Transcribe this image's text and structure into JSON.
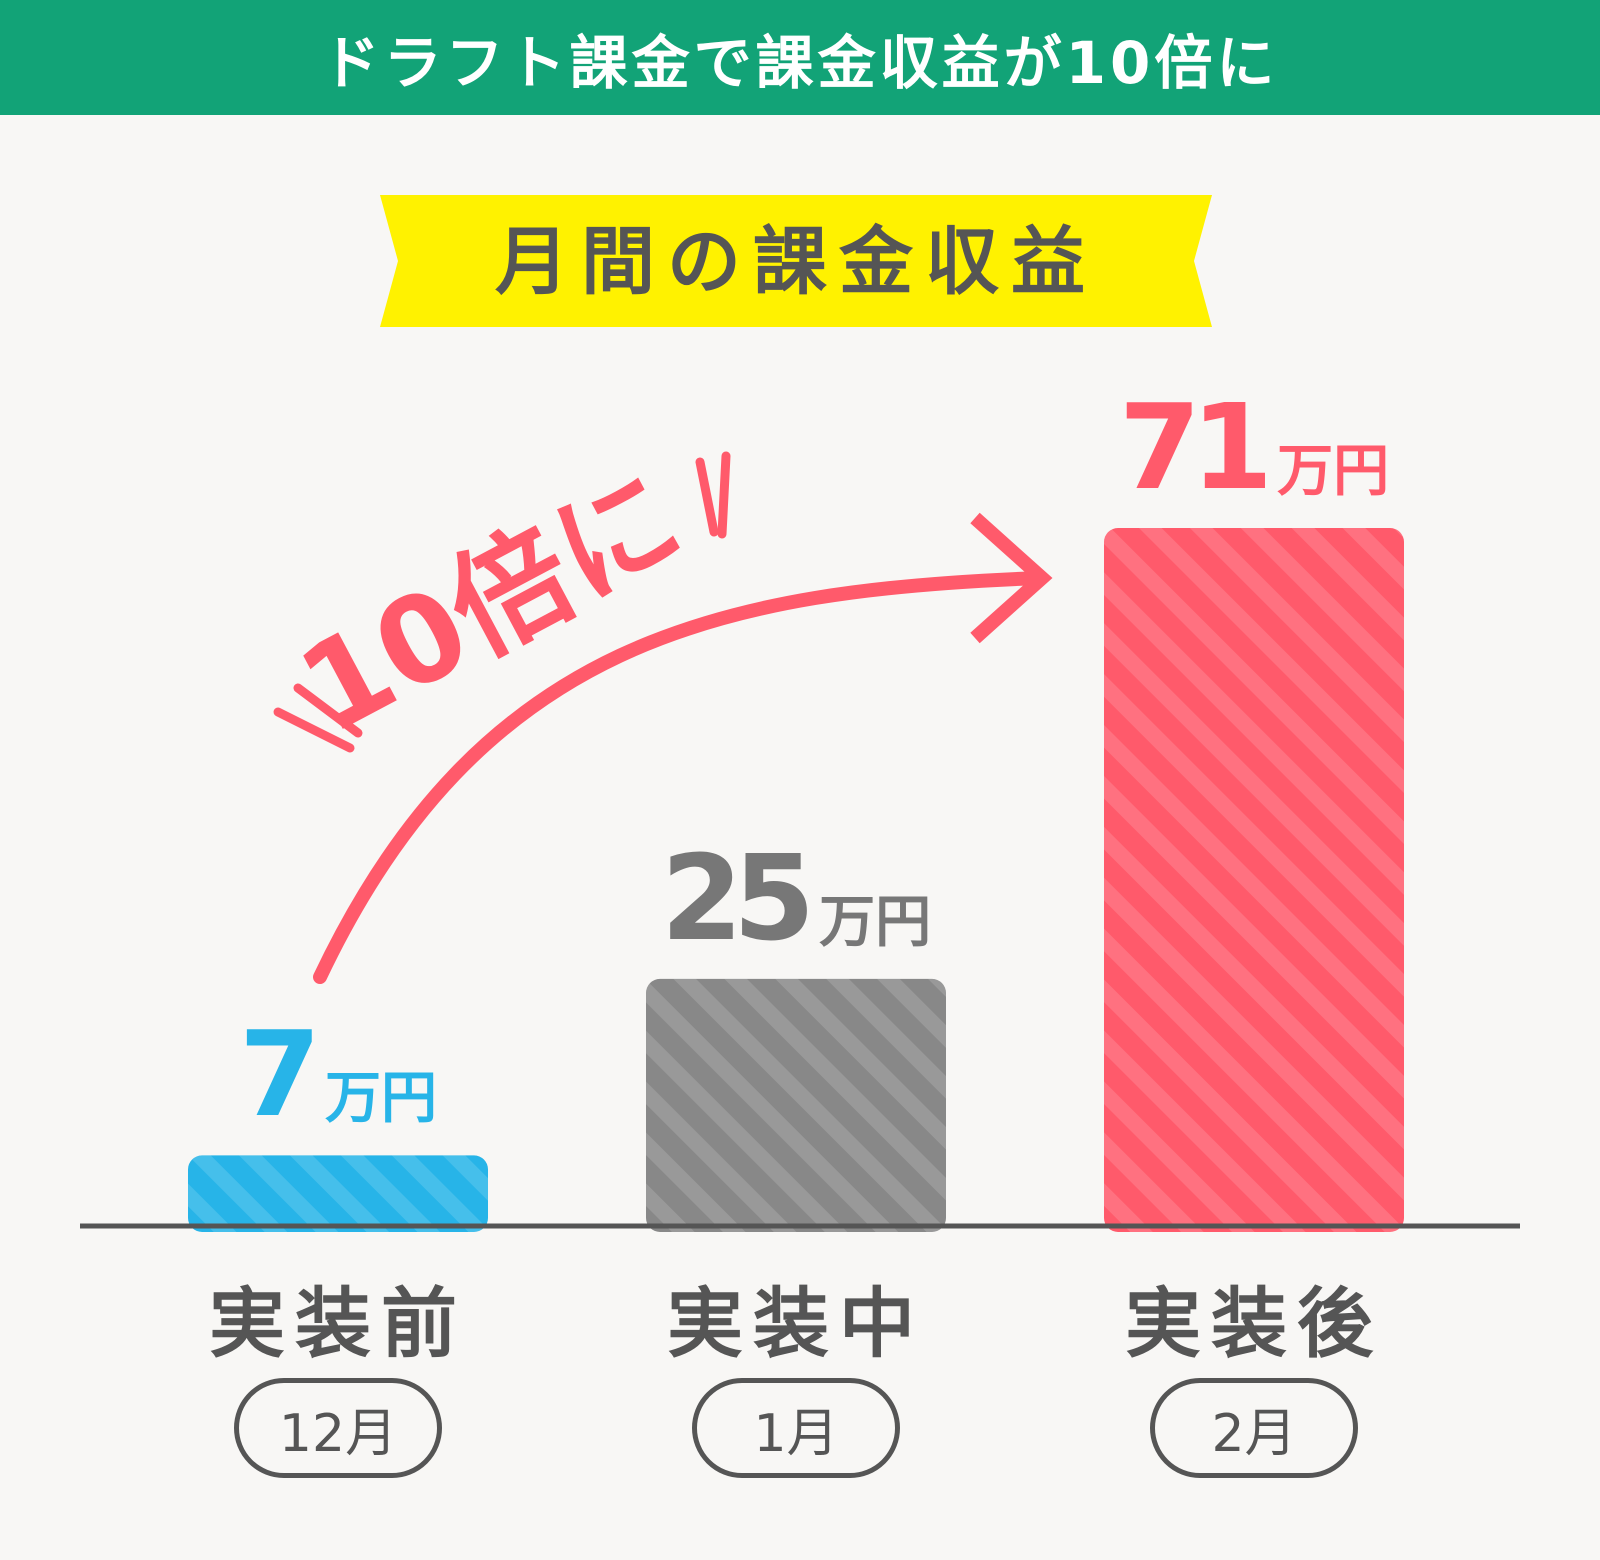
{
  "header": {
    "title": "ドラフト課金で課金収益が10倍に"
  },
  "colors": {
    "header_bg": "#12a377",
    "ribbon": "#fff200",
    "before": "#27b4e8",
    "during": "#888888",
    "after": "#ff5a6b",
    "text_dark": "#555555"
  },
  "chart_data": {
    "type": "bar",
    "title": "月間の課金収益",
    "categories": [
      "実装前",
      "実装中",
      "実装後"
    ],
    "months": [
      "12月",
      "1月",
      "2月"
    ],
    "values": [
      7,
      25,
      71
    ],
    "value_labels": [
      "7",
      "25",
      "71"
    ],
    "unit": "万円",
    "bar_colors": [
      "#27b4e8",
      "#888888",
      "#ff5a6b"
    ],
    "label_colors": [
      "#27b4e8",
      "#777777",
      "#ff5a6b"
    ],
    "ylim": [
      0,
      71
    ],
    "grid": false,
    "annotation": "10倍に"
  }
}
